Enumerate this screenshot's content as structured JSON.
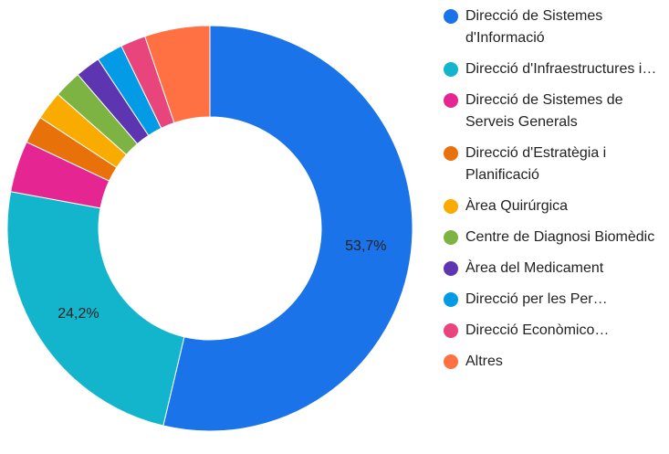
{
  "chart_data": {
    "type": "donut",
    "categories": [
      "Direcció de Sistemes d'Informació",
      "Direcció d'Infraestructures i…",
      "Direcció de Sistemes de Serveis Generals",
      "Direcció d'Estratègia i Planificació",
      "Àrea Quirúrgica",
      "Centre de Diagnosi Biomèdic",
      "Àrea del Medicament",
      "Direcció per les Per…",
      "Direcció Econòmico…",
      "Altres"
    ],
    "values": [
      53.7,
      24.2,
      4.1,
      2.2,
      2.3,
      2.2,
      2.0,
      2.1,
      2.0,
      5.2
    ],
    "value_labels": [
      "53,7%",
      "24,2%",
      null,
      null,
      null,
      null,
      null,
      null,
      null,
      null
    ],
    "colors": [
      "#1a73e8",
      "#12b5cb",
      "#e52592",
      "#e8710a",
      "#f9ab00",
      "#7cb342",
      "#5e35b1",
      "#039be5",
      "#e8457c",
      "#ff7043"
    ],
    "legend": "right"
  }
}
